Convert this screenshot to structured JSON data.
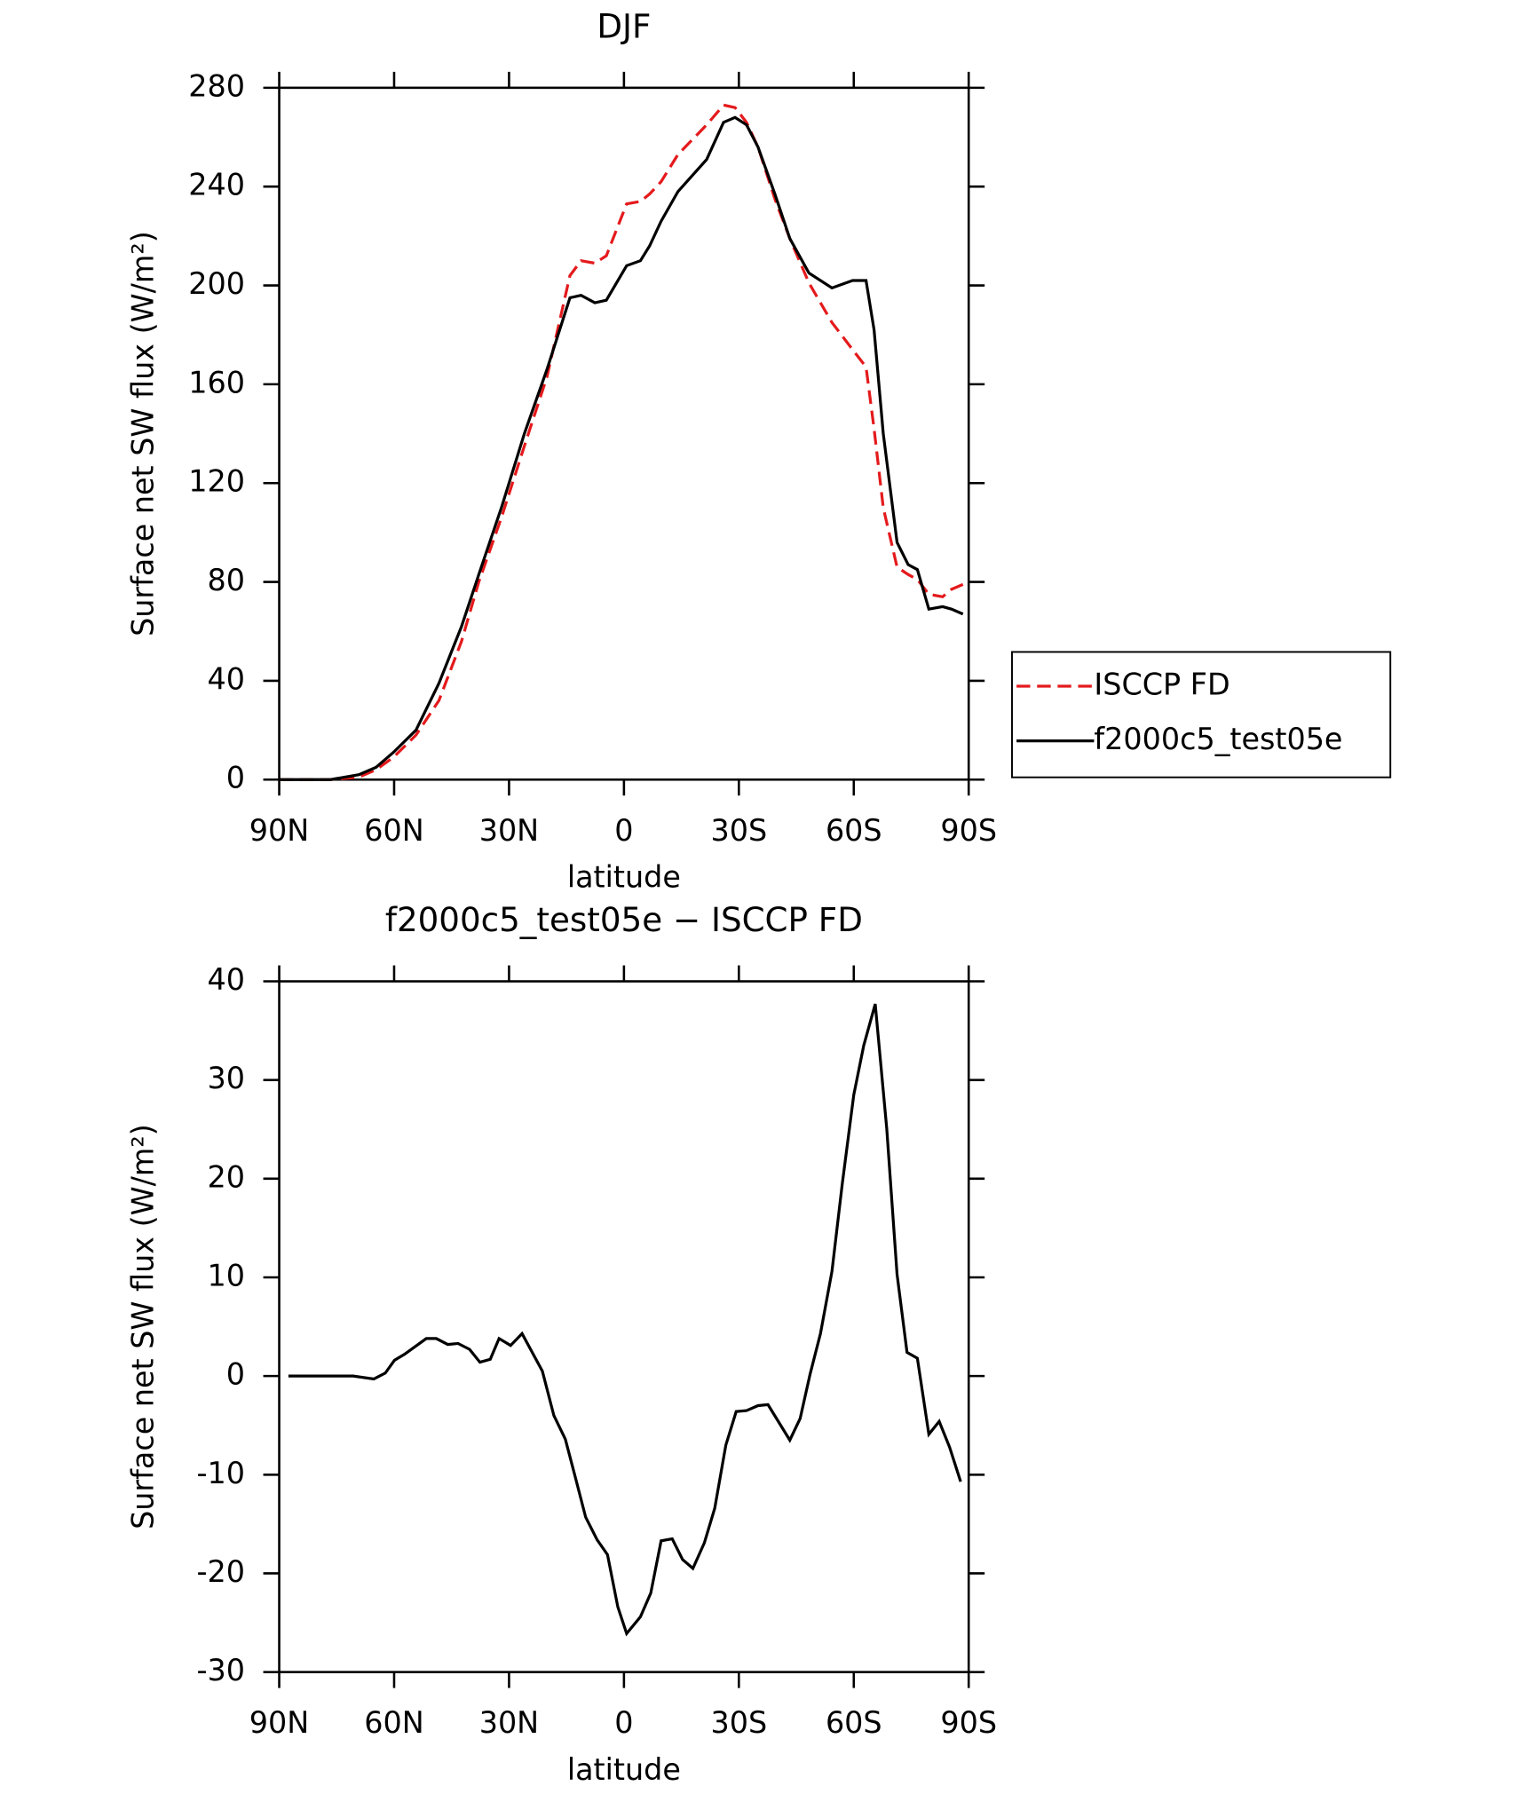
{
  "chart_data": [
    {
      "type": "line",
      "title": "DJF",
      "xlabel": "latitude",
      "ylabel": "Surface net SW flux (W/m²)",
      "xlim": [
        90,
        -90
      ],
      "xticks": [
        {
          "value": 90,
          "label": "90N"
        },
        {
          "value": 60,
          "label": "60N"
        },
        {
          "value": 30,
          "label": "30N"
        },
        0,
        {
          "value": -30,
          "label": "30S"
        },
        {
          "value": -60,
          "label": "60S"
        },
        {
          "value": -90,
          "label": "90S"
        }
      ],
      "ylim": [
        0,
        280
      ],
      "yticks": [
        0,
        40,
        80,
        120,
        160,
        200,
        240,
        280
      ],
      "legend": "right",
      "x": [
        90,
        76.6,
        69.2,
        64.7,
        60.2,
        54.3,
        48.3,
        42.4,
        37.9,
        32,
        26,
        20.1,
        14.1,
        11.2,
        7.6,
        4.6,
        -0.7,
        -4.3,
        -6.7,
        -9.7,
        -14.1,
        -21.6,
        -26,
        -29,
        -32,
        -35,
        -39.4,
        -43.3,
        -48.3,
        -54.3,
        -59.7,
        -63.2,
        -65.3,
        -67.7,
        -71.3,
        -74.2,
        -76.6,
        -79.6,
        -83.2,
        -85.5,
        -88.5
      ],
      "series": [
        {
          "name": "ISCCP FD",
          "color": "#e41a1c",
          "line_style": "dashed",
          "values": [
            0,
            0,
            1,
            4,
            9,
            18,
            32,
            56,
            80,
            106,
            135,
            163,
            204,
            210,
            209,
            212,
            233,
            234,
            237,
            242,
            253,
            265,
            273,
            272,
            266,
            256,
            235,
            219,
            201,
            185,
            174,
            167,
            142,
            110,
            86,
            83,
            81,
            75,
            74,
            77,
            79
          ]
        },
        {
          "name": "f2000c5_test05e",
          "color": "#000000",
          "line_style": "solid",
          "values": [
            0,
            0,
            2,
            5,
            11,
            20,
            39,
            62,
            83,
            110,
            140,
            166,
            195,
            196,
            193,
            194,
            208,
            210,
            216,
            226,
            238,
            251,
            266,
            268,
            265,
            256,
            237,
            219,
            205,
            199,
            202,
            202,
            182,
            140,
            96,
            87,
            85,
            69,
            70,
            69,
            67
          ]
        }
      ]
    },
    {
      "type": "line",
      "title": "f2000c5_test05e − ISCCP FD",
      "xlabel": "latitude",
      "ylabel": "Surface net SW flux (W/m²)",
      "xlim": [
        90,
        -90
      ],
      "xticks": [
        {
          "value": 90,
          "label": "90N"
        },
        {
          "value": 60,
          "label": "60N"
        },
        {
          "value": 30,
          "label": "30N"
        },
        0,
        {
          "value": -30,
          "label": "30S"
        },
        {
          "value": -60,
          "label": "60S"
        },
        {
          "value": -90,
          "label": "90S"
        }
      ],
      "ylim": [
        -30,
        40
      ],
      "yticks": [
        -30,
        -20,
        -10,
        0,
        10,
        20,
        30,
        40
      ],
      "color": "#000000",
      "x": [
        87.6,
        70.7,
        65.3,
        62.3,
        59.9,
        57.3,
        51.6,
        49,
        46,
        43.3,
        40.3,
        37.6,
        34.9,
        32.6,
        29.6,
        26.6,
        21.3,
        18.3,
        15.3,
        12.6,
        10,
        7,
        4.3,
        1.6,
        -0.7,
        -4.3,
        -7,
        -9.7,
        -12.6,
        -15.3,
        -18,
        -21,
        -23.7,
        -26.6,
        -29.3,
        -32,
        -35,
        -37.6,
        -43.3,
        -46,
        -48.6,
        -51.3,
        -54.3,
        -57,
        -60,
        -62.6,
        -65.6,
        -68.6,
        -71.3,
        -73.9,
        -76.6,
        -79.6,
        -82.3,
        -85,
        -87.9
      ],
      "values": [
        0,
        0,
        -0.3,
        0.3,
        1.6,
        2.2,
        3.8,
        3.8,
        3.2,
        3.3,
        2.7,
        1.4,
        1.7,
        3.8,
        3.1,
        4.3,
        0.5,
        -4,
        -6.4,
        -10.4,
        -14.3,
        -16.6,
        -18.1,
        -23.4,
        -26.1,
        -24.4,
        -22,
        -16.7,
        -16.5,
        -18.6,
        -19.5,
        -16.9,
        -13.4,
        -7,
        -3.6,
        -3.5,
        -3,
        -2.9,
        -6.5,
        -4.3,
        0.2,
        4.3,
        10.6,
        19.5,
        28.5,
        33.5,
        37.7,
        25.1,
        10.3,
        2.4,
        1.8,
        -5.9,
        -4.6,
        -7.2,
        -10.7
      ]
    }
  ]
}
